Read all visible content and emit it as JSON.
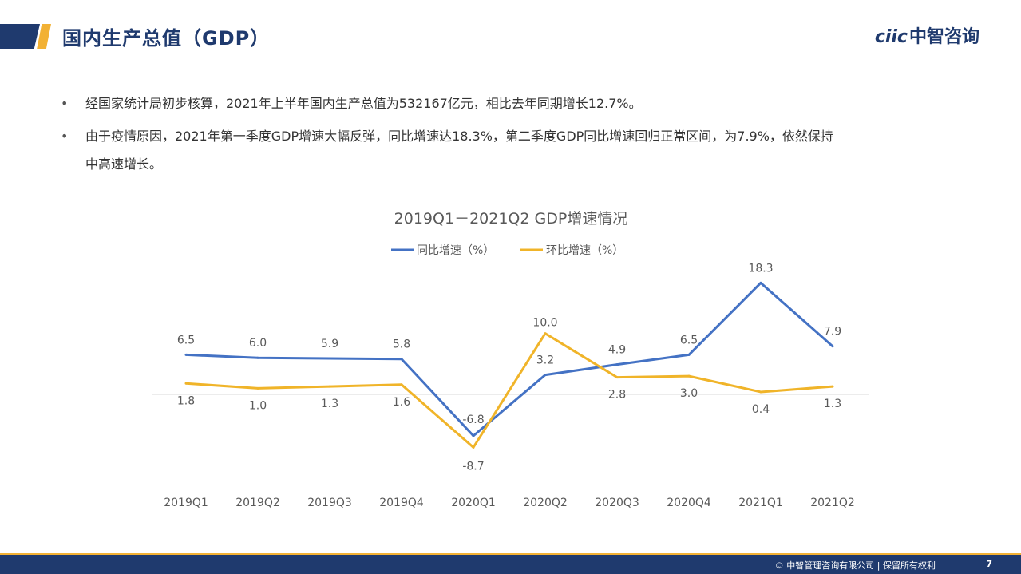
{
  "header": {
    "title": "国内生产总值（GDP）",
    "logo_en": "ciic",
    "logo_cn": "中智咨询"
  },
  "bullets": [
    {
      "lines": [
        "经国家统计局初步核算，2021年上半年国内生产总值为532167亿元，相比去年同期增长12.7%。"
      ]
    },
    {
      "lines": [
        "由于疫情原因，2021年第一季度GDP增速大幅反弹，同比增速达18.3%，第二季度GDP同比增速回归正常区间，为7.9%，依然保持",
        "中高速增长。"
      ]
    }
  ],
  "bullet_marker": "•",
  "colors": {
    "navy": "#1f3a6e",
    "gold": "#f2b134",
    "yoy": "#4472c4",
    "qoq": "#f0b429"
  },
  "chart_data": {
    "type": "line",
    "title": "2019Q1－2021Q2 GDP增速情况",
    "categories": [
      "2019Q1",
      "2019Q2",
      "2019Q3",
      "2019Q4",
      "2020Q1",
      "2020Q2",
      "2020Q3",
      "2020Q4",
      "2021Q1",
      "2021Q2"
    ],
    "series": [
      {
        "name": "同比增速（%）",
        "values": [
          6.5,
          6.0,
          5.9,
          5.8,
          -6.8,
          3.2,
          4.9,
          6.5,
          18.3,
          7.9
        ],
        "labels": [
          "6.5",
          "6.0",
          "5.9",
          "5.8",
          "-6.8",
          "3.2",
          "4.9",
          "6.5",
          "18.3",
          "7.9"
        ],
        "color": "#4472c4"
      },
      {
        "name": "环比增速（%）",
        "values": [
          1.8,
          1.0,
          1.3,
          1.6,
          -8.7,
          10.0,
          2.8,
          3.0,
          0.4,
          1.3
        ],
        "labels": [
          "1.8",
          "1.0",
          "1.3",
          "1.6",
          "-8.7",
          "10.0",
          "2.8",
          "3.0",
          "0.4",
          "1.3"
        ],
        "color": "#f0b429"
      }
    ],
    "ylim": [
      -10,
      20
    ],
    "legend": "top-center",
    "grid": false,
    "xlabel": "",
    "ylabel": ""
  },
  "footer": {
    "copyright": "© 中智管理咨询有限公司 | 保留所有权利",
    "page": "7"
  }
}
